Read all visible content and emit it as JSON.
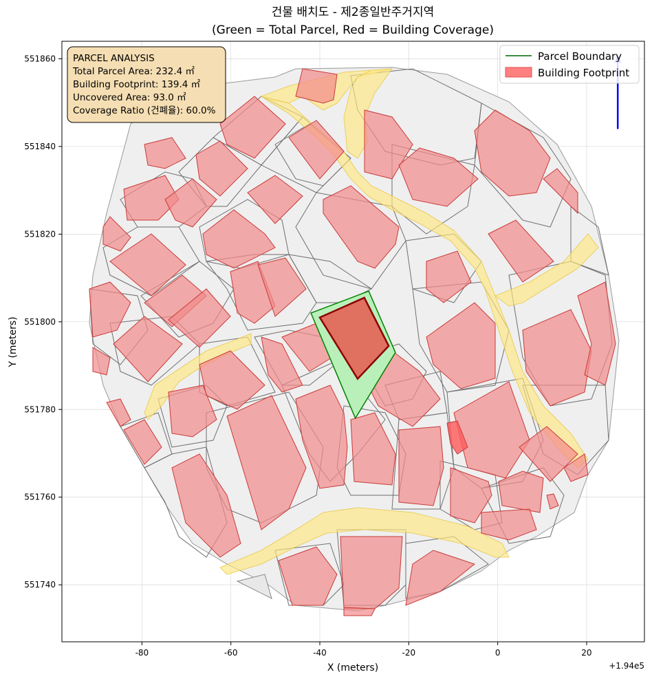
{
  "title": {
    "line1": "건물 배치도 - 제2종일반주거지역",
    "line2": "(Green = Total Parcel, Red = Building Coverage)"
  },
  "axes": {
    "xlabel": "X (meters)",
    "ylabel": "Y (meters)",
    "x_offset_label": "+1.94e5",
    "x_ticks": [
      "-80",
      "-60",
      "-40",
      "-20",
      "0",
      "20"
    ],
    "y_ticks": [
      "551860",
      "551840",
      "551820",
      "551800",
      "551780",
      "551760",
      "551740"
    ],
    "x_range": [
      -98,
      33
    ],
    "y_range": [
      551727,
      551864
    ]
  },
  "info_box": {
    "title": "PARCEL ANALYSIS",
    "lines": [
      "Total Parcel Area: 232.4 ㎡",
      "Building Footprint: 139.4 ㎡",
      "Uncovered Area: 93.0 ㎡",
      "Coverage Ratio (건폐율): 60.0%"
    ]
  },
  "legend": {
    "placement": "top-right",
    "items": [
      {
        "label": "Parcel Boundary",
        "color": "#006400",
        "kind": "line"
      },
      {
        "label": "Building Footprint",
        "color": "#ff8080",
        "kind": "patch"
      }
    ]
  },
  "colors": {
    "target_parcel_fill": "#b9f0b9",
    "target_parcel_edge": "#008000",
    "target_building_fill": "#e07060",
    "target_building_edge": "#8b0000",
    "road": "#ffe680",
    "north_arrow": "#0000ff"
  },
  "chart_data": {
    "type": "map",
    "target_parcel": [
      [
        -42,
        551802
      ],
      [
        -29,
        551807
      ],
      [
        -23,
        551793
      ],
      [
        -32,
        551778
      ]
    ],
    "target_building": [
      [
        -40,
        551801
      ],
      [
        -30,
        551805.5
      ],
      [
        -24.5,
        551794.5
      ],
      [
        -31.5,
        551787
      ]
    ],
    "north_arrow": {
      "x": 27,
      "y_from": 551844,
      "y_to": 551861
    }
  }
}
